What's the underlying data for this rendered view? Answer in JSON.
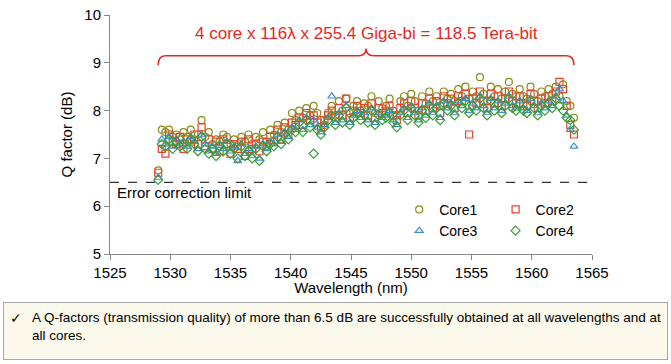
{
  "chart_data": {
    "type": "scatter",
    "x_label": "Wavelength (nm)",
    "y_label": "Q factor (dB)",
    "annotations": [
      "4 core x 116λ x 255.4 Giga-bi = 118.5 Tera-bit"
    ],
    "reference_line": {
      "value": 6.5,
      "label": "Error correction limit",
      "line_style": "dashed"
    },
    "xlim": [
      1525,
      1565
    ],
    "xticks": [
      1525,
      1530,
      1535,
      1540,
      1545,
      1550,
      1555,
      1560,
      1565
    ],
    "ylim": [
      5,
      10
    ],
    "yticks": [
      5,
      6,
      7,
      8,
      9,
      10
    ],
    "grid": false,
    "legend": "lower right",
    "x": [
      1529.0,
      1529.3,
      1529.6,
      1529.9,
      1530.2,
      1530.5,
      1530.8,
      1531.1,
      1531.4,
      1531.7,
      1532.0,
      1532.3,
      1532.6,
      1532.9,
      1533.2,
      1533.5,
      1533.8,
      1534.1,
      1534.4,
      1534.7,
      1535.0,
      1535.3,
      1535.6,
      1535.9,
      1536.2,
      1536.5,
      1536.8,
      1537.1,
      1537.4,
      1537.7,
      1538.0,
      1538.3,
      1538.6,
      1538.9,
      1539.2,
      1539.5,
      1539.8,
      1540.1,
      1540.4,
      1540.7,
      1541.0,
      1541.3,
      1541.6,
      1541.9,
      1542.2,
      1542.5,
      1542.8,
      1543.1,
      1543.4,
      1543.7,
      1544.0,
      1544.3,
      1544.6,
      1544.9,
      1545.2,
      1545.5,
      1545.8,
      1546.1,
      1546.4,
      1546.7,
      1547.0,
      1547.3,
      1547.6,
      1547.9,
      1548.2,
      1548.5,
      1548.8,
      1549.1,
      1549.4,
      1549.7,
      1550.0,
      1550.3,
      1550.6,
      1550.9,
      1551.2,
      1551.5,
      1551.8,
      1552.1,
      1552.4,
      1552.7,
      1553.0,
      1553.3,
      1553.6,
      1553.9,
      1554.2,
      1554.5,
      1554.8,
      1555.1,
      1555.4,
      1555.7,
      1556.0,
      1556.3,
      1556.6,
      1556.9,
      1557.2,
      1557.5,
      1557.8,
      1558.1,
      1558.4,
      1558.7,
      1559.0,
      1559.3,
      1559.6,
      1559.9,
      1560.2,
      1560.5,
      1560.8,
      1561.1,
      1561.4,
      1561.7,
      1562.0,
      1562.3,
      1562.6,
      1562.9,
      1563.2,
      1563.5
    ],
    "series": [
      {
        "name": "Core1",
        "color": "#8c8c1e",
        "marker": "circle-open",
        "values": [
          6.75,
          7.6,
          7.55,
          7.6,
          7.45,
          7.5,
          7.4,
          7.55,
          7.45,
          7.6,
          7.4,
          7.5,
          7.8,
          7.45,
          7.55,
          7.3,
          7.4,
          7.35,
          7.5,
          7.45,
          7.3,
          7.4,
          7.25,
          7.45,
          7.35,
          7.5,
          7.3,
          7.45,
          7.4,
          7.55,
          7.35,
          7.6,
          7.5,
          7.7,
          7.55,
          7.75,
          7.6,
          7.95,
          7.8,
          8.0,
          7.85,
          8.05,
          7.9,
          8.1,
          7.95,
          7.8,
          7.7,
          7.95,
          8.1,
          7.9,
          8.2,
          8.0,
          8.25,
          7.95,
          8.1,
          8.2,
          8.0,
          8.15,
          8.1,
          8.3,
          7.95,
          8.2,
          8.05,
          8.1,
          8.25,
          8.0,
          7.9,
          8.2,
          8.3,
          8.1,
          8.35,
          8.2,
          8.0,
          8.3,
          8.15,
          8.4,
          8.2,
          8.3,
          8.1,
          8.4,
          8.25,
          8.35,
          8.2,
          8.45,
          8.3,
          8.5,
          8.25,
          8.4,
          8.3,
          8.7,
          8.35,
          8.2,
          8.5,
          8.3,
          8.45,
          8.25,
          8.4,
          8.6,
          8.35,
          8.3,
          8.45,
          8.3,
          8.25,
          8.5,
          8.35,
          8.2,
          8.4,
          8.3,
          8.45,
          8.35,
          8.5,
          8.3,
          8.55,
          8.2,
          8.1,
          7.85
        ]
      },
      {
        "name": "Core2",
        "color": "#e8442a",
        "marker": "square-open",
        "values": [
          6.7,
          7.2,
          7.1,
          7.5,
          7.35,
          7.3,
          7.45,
          7.2,
          7.4,
          7.35,
          7.5,
          7.3,
          7.65,
          7.25,
          7.4,
          7.2,
          7.35,
          7.15,
          7.4,
          7.3,
          7.1,
          7.3,
          7.2,
          7.35,
          7.05,
          7.4,
          7.2,
          7.3,
          7.15,
          7.35,
          7.25,
          7.45,
          7.35,
          7.6,
          7.4,
          7.65,
          7.5,
          7.75,
          7.7,
          7.85,
          7.7,
          7.95,
          7.8,
          7.9,
          7.75,
          7.65,
          7.8,
          7.9,
          8.0,
          7.85,
          8.05,
          7.9,
          8.25,
          7.85,
          8.0,
          8.1,
          7.95,
          8.05,
          7.9,
          8.15,
          7.85,
          8.05,
          7.95,
          8.0,
          8.1,
          7.9,
          7.8,
          8.05,
          8.15,
          7.95,
          8.2,
          8.05,
          7.9,
          8.15,
          8.0,
          8.25,
          8.05,
          8.2,
          7.95,
          8.3,
          8.15,
          8.25,
          8.05,
          8.3,
          8.2,
          8.35,
          7.5,
          8.25,
          8.15,
          8.4,
          8.2,
          8.05,
          8.35,
          8.15,
          8.3,
          8.1,
          8.25,
          8.4,
          8.2,
          8.15,
          8.3,
          8.15,
          8.1,
          8.35,
          8.2,
          8.05,
          8.25,
          8.15,
          8.3,
          8.2,
          8.4,
          8.6,
          8.45,
          8.1,
          7.7,
          7.5
        ]
      },
      {
        "name": "Core3",
        "color": "#3d8fd8",
        "marker": "triangle-up-open",
        "values": [
          6.6,
          7.4,
          7.3,
          7.45,
          7.25,
          7.4,
          7.3,
          7.35,
          7.25,
          7.45,
          7.35,
          7.2,
          7.5,
          7.3,
          7.15,
          7.25,
          7.1,
          7.3,
          7.2,
          7.35,
          7.15,
          7.25,
          6.95,
          7.3,
          7.1,
          7.2,
          7.05,
          7.25,
          7.0,
          7.3,
          7.2,
          7.35,
          7.3,
          7.5,
          7.35,
          7.55,
          7.45,
          7.65,
          7.6,
          7.8,
          7.6,
          7.85,
          7.7,
          7.8,
          7.65,
          7.55,
          7.7,
          7.85,
          8.3,
          7.75,
          7.95,
          7.8,
          8.1,
          7.75,
          7.9,
          8.0,
          7.85,
          7.95,
          7.8,
          8.05,
          7.75,
          7.95,
          7.85,
          7.9,
          8.0,
          7.8,
          7.7,
          7.95,
          8.05,
          7.85,
          8.1,
          7.95,
          7.8,
          8.05,
          7.9,
          8.15,
          7.95,
          8.1,
          7.85,
          8.2,
          8.05,
          8.15,
          7.95,
          8.2,
          8.1,
          8.25,
          8.0,
          8.15,
          8.05,
          8.3,
          8.1,
          7.95,
          8.25,
          8.05,
          8.2,
          8.0,
          8.15,
          8.3,
          8.1,
          8.05,
          8.2,
          8.05,
          8.0,
          8.25,
          8.1,
          7.95,
          8.15,
          8.05,
          8.2,
          8.1,
          8.3,
          8.45,
          8.2,
          7.9,
          7.6,
          7.25
        ]
      },
      {
        "name": "Core4",
        "color": "#3a9e3a",
        "marker": "diamond-open",
        "values": [
          6.55,
          7.3,
          7.25,
          7.4,
          7.2,
          7.35,
          7.25,
          7.3,
          7.2,
          7.4,
          7.3,
          7.15,
          7.45,
          7.2,
          7.1,
          7.2,
          7.05,
          7.25,
          7.15,
          7.3,
          7.1,
          7.2,
          7.0,
          7.25,
          7.05,
          7.15,
          7.0,
          7.2,
          6.95,
          7.25,
          7.15,
          7.3,
          7.25,
          7.45,
          7.3,
          7.5,
          7.4,
          7.6,
          7.55,
          7.75,
          7.55,
          7.8,
          7.65,
          7.1,
          7.6,
          7.5,
          7.65,
          7.8,
          7.9,
          7.7,
          7.9,
          7.75,
          8.05,
          7.7,
          7.85,
          7.95,
          7.8,
          7.9,
          7.75,
          8.0,
          7.7,
          7.9,
          7.8,
          7.85,
          7.95,
          7.75,
          7.65,
          7.9,
          8.0,
          7.8,
          8.05,
          7.9,
          7.75,
          8.0,
          7.85,
          8.1,
          7.9,
          8.05,
          7.8,
          8.15,
          8.0,
          8.1,
          7.9,
          8.15,
          8.05,
          8.2,
          7.95,
          8.1,
          8.0,
          8.25,
          8.05,
          7.9,
          8.2,
          8.0,
          8.15,
          7.95,
          8.1,
          8.25,
          8.05,
          8.0,
          8.15,
          8.0,
          7.95,
          8.2,
          8.05,
          7.9,
          8.1,
          8.0,
          8.15,
          8.05,
          8.25,
          8.1,
          8.0,
          7.85,
          7.8,
          7.6
        ]
      }
    ]
  },
  "caption": {
    "bullet": "✓",
    "text": "A Q-factors (transmission quality) of more than 6.5 dB are successfully obtained at all wavelengths and at all cores."
  }
}
